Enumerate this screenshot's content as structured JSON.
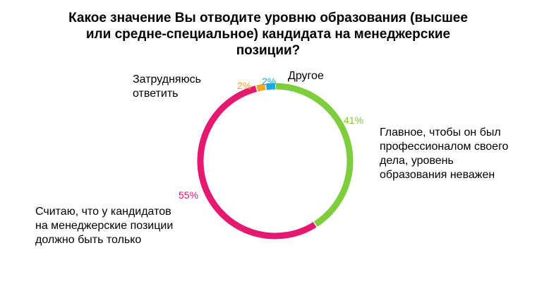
{
  "title_lines": [
    "Какое значение Вы отводите уровню образования (высшее",
    "или средне-специальное) кандидата на менеджерские",
    "позиции?"
  ],
  "chart_data": {
    "type": "pie",
    "donut": true,
    "title": "Какое значение Вы отводите уровню образования (высшее или средне-специальное) кандидата на менеджерские позиции?",
    "start": "top",
    "direction": "clockwise",
    "slices": [
      {
        "value": 41,
        "label_pct": "41%",
        "color": "#7dcd3c",
        "label_lines": [
          "Главное, чтобы он был",
          "профессионалом своего",
          "дела, уровень",
          "образования неважен"
        ]
      },
      {
        "value": 55,
        "label_pct": "55%",
        "color": "#e5196f",
        "label_lines": [
          "Считаю, что у кандидатов",
          "на менеджерские позиции",
          "должно быть только"
        ]
      },
      {
        "value": 2,
        "label_pct": "2%",
        "color": "#f4a623",
        "label_lines": [
          "Затрудняюсь",
          "ответить"
        ]
      },
      {
        "value": 2,
        "label_pct": "2%",
        "color": "#16a9e0",
        "label_lines": [
          "Другое"
        ]
      }
    ]
  }
}
